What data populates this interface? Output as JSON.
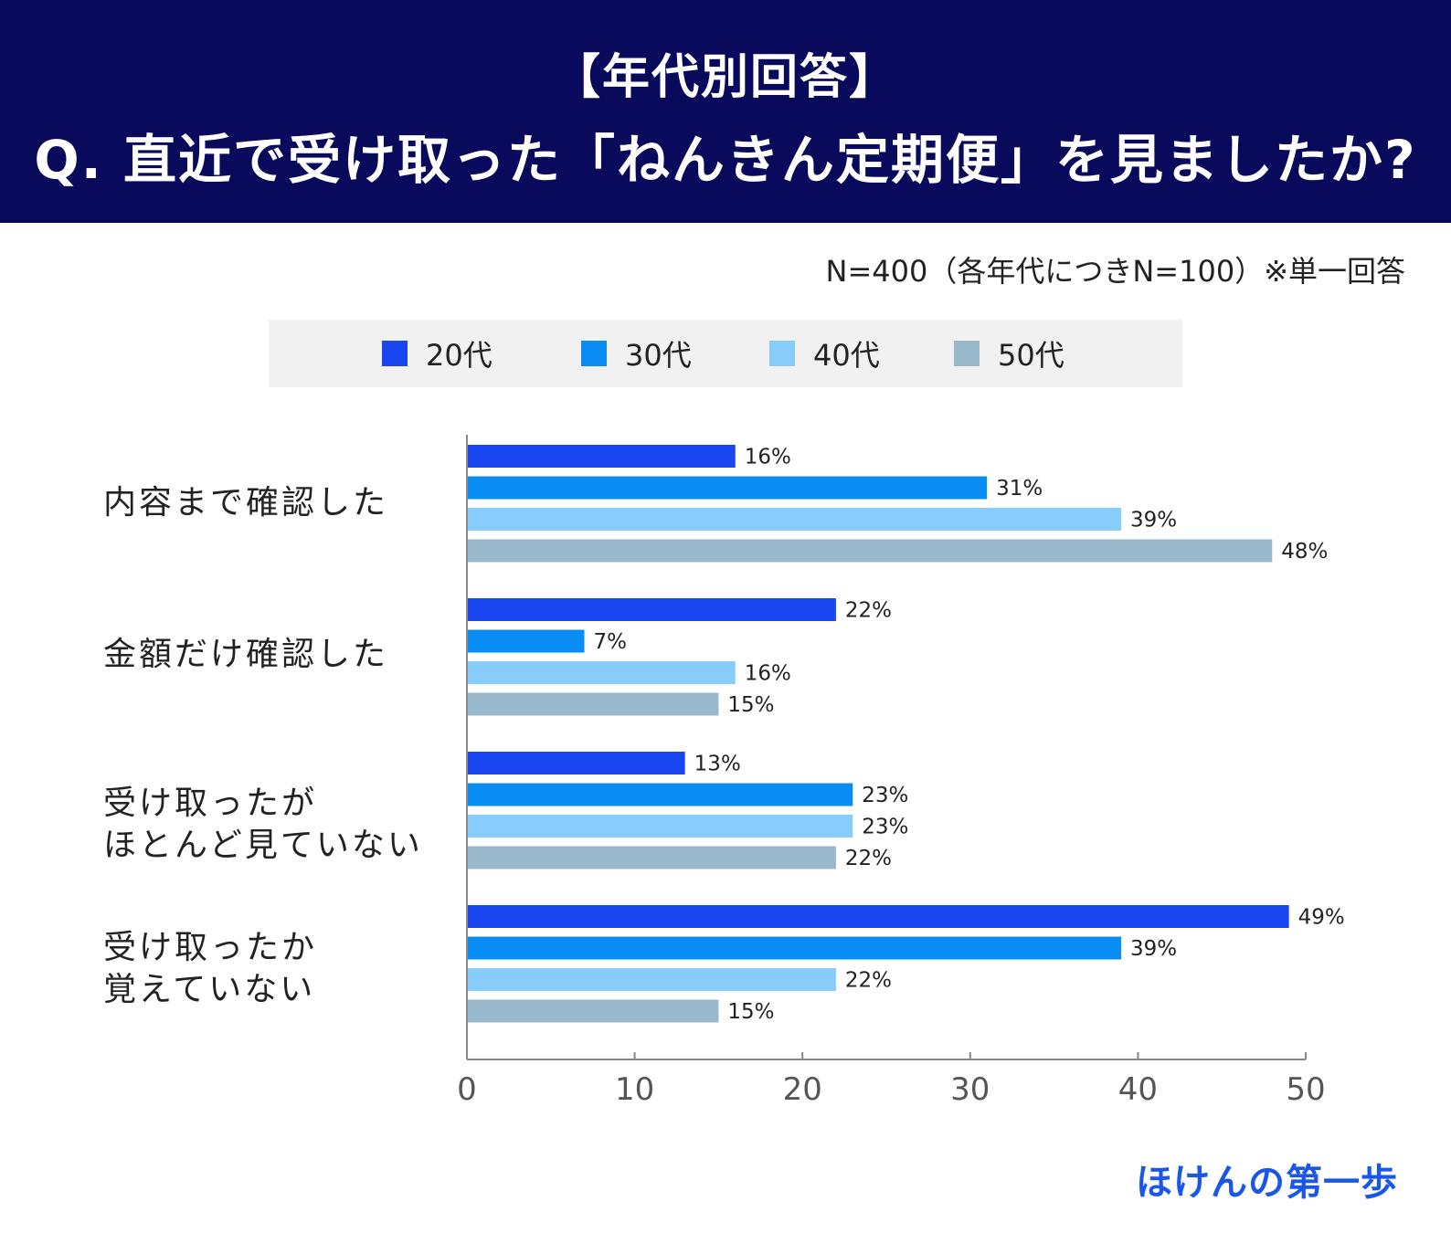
{
  "header": {
    "line1": "【年代別回答】",
    "line2": "Q. 直近で受け取った「ねんきん定期便」を見ましたか?"
  },
  "note": "N=400（各年代につきN=100）※単一回答",
  "brand": "ほけんの第一歩",
  "chart_data": {
    "type": "bar",
    "orientation": "horizontal",
    "categories": [
      "内容まで確認した",
      "金額だけ確認した",
      "受け取ったが\nほとんど見ていない",
      "受け取ったか\n覚えていない"
    ],
    "series": [
      {
        "name": "20代",
        "color": "#1a46f0",
        "values": [
          16,
          22,
          13,
          49
        ],
        "labels": [
          "16%",
          "22%",
          "13%",
          "49%"
        ]
      },
      {
        "name": "30代",
        "color": "#0a8cf5",
        "values": [
          31,
          7,
          23,
          39
        ],
        "labels": [
          "31%",
          "7%",
          "23%",
          "39%"
        ]
      },
      {
        "name": "40代",
        "color": "#88ccfc",
        "values": [
          39,
          16,
          23,
          22
        ],
        "labels": [
          "39%",
          "16%",
          "23%",
          "22%"
        ]
      },
      {
        "name": "50代",
        "color": "#9ab8cc",
        "values": [
          48,
          15,
          22,
          15
        ],
        "labels": [
          "48%",
          "15%",
          "22%",
          "15%"
        ]
      }
    ],
    "xlim": [
      0,
      50
    ],
    "xticks": [
      0,
      10,
      20,
      30,
      40,
      50
    ],
    "xtick_labels": [
      "0",
      "10",
      "20",
      "30",
      "40",
      "50"
    ],
    "legend_position": "top",
    "grid": false
  }
}
